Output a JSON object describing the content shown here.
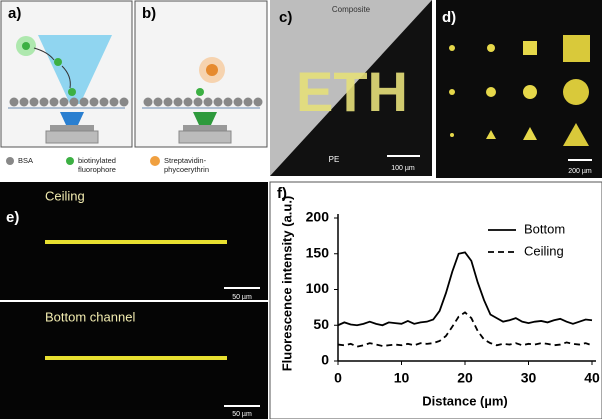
{
  "panel_a": {
    "label": "a)"
  },
  "panel_b": {
    "label": "b)"
  },
  "legend_items": [
    {
      "lines": [
        "BSA"
      ]
    },
    {
      "lines": [
        "biotinylated",
        "fluorophore"
      ]
    },
    {
      "lines": [
        "Streptavidin-",
        "phycoerythrin"
      ]
    }
  ],
  "panel_c": {
    "label": "c)",
    "top_caption": "Composite",
    "bottom_caption": "PE",
    "pattern": "ETH",
    "scale_bar": "100 µm"
  },
  "panel_d": {
    "label": "d)",
    "scale_bar": "200 µm"
  },
  "panel_e": {
    "label": "e)",
    "top_caption": "Ceiling",
    "top_scale_bar": "50 µm",
    "bottom_caption": "Bottom channel",
    "bottom_scale_bar": "50 µm"
  },
  "chart_data": {
    "type": "line",
    "panel_label": "f)",
    "xlabel": "Distance (µm)",
    "ylabel": "Fluorescence intensity (a.u.)",
    "x": [
      0,
      1,
      2,
      3,
      4,
      5,
      6,
      7,
      8,
      9,
      10,
      11,
      12,
      13,
      14,
      15,
      16,
      17,
      18,
      19,
      20,
      21,
      22,
      23,
      24,
      25,
      26,
      27,
      28,
      29,
      30,
      31,
      32,
      33,
      34,
      35,
      36,
      37,
      38,
      39,
      40
    ],
    "series": [
      {
        "name": "Bottom",
        "color": "#000000",
        "line_style": "solid",
        "values": [
          50,
          54,
          51,
          50,
          52,
          55,
          52,
          50,
          54,
          53,
          52,
          56,
          52,
          54,
          55,
          58,
          70,
          95,
          125,
          150,
          152,
          140,
          110,
          85,
          65,
          60,
          55,
          57,
          60,
          55,
          53,
          55,
          56,
          54,
          57,
          59,
          55,
          52,
          55,
          58,
          57
        ]
      },
      {
        "name": "Ceiling",
        "color": "#000000",
        "line_style": "dashed",
        "values": [
          23,
          22,
          24,
          20,
          22,
          25,
          23,
          21,
          22,
          23,
          22,
          24,
          22,
          25,
          24,
          25,
          28,
          35,
          48,
          62,
          68,
          60,
          42,
          30,
          25,
          22,
          24,
          23,
          25,
          22,
          24,
          23,
          25,
          24,
          22,
          23,
          26,
          24,
          23,
          25,
          22
        ]
      }
    ],
    "xlim": [
      0,
      40
    ],
    "xticks": [
      0,
      10,
      20,
      30,
      40
    ],
    "ylim": [
      0,
      200
    ],
    "yticks": [
      0,
      50,
      100,
      150,
      200
    ],
    "legend": "upper right"
  }
}
